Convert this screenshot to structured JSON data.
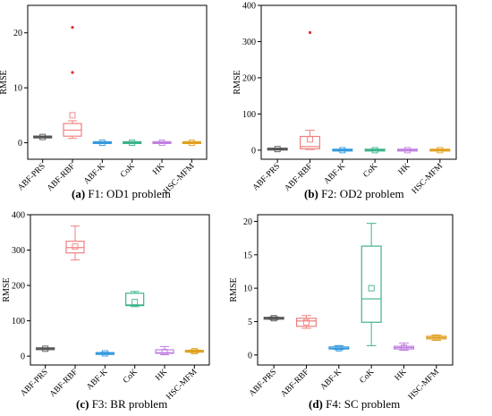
{
  "figure": {
    "panels": [
      {
        "caption_label": "(a)",
        "caption_text": " F1: OD1 problem"
      },
      {
        "caption_label": "(b)",
        "caption_text": " F2: OD2 problem"
      },
      {
        "caption_label": "(c)",
        "caption_text": " F3: BR problem"
      },
      {
        "caption_label": "(d)",
        "caption_text": " F4: SC problem"
      }
    ]
  },
  "chart_data": [
    {
      "type": "box",
      "title": "",
      "xlabel": "",
      "ylabel": "RMSE",
      "ylim": [
        -3,
        25
      ],
      "yticks": [
        0,
        10,
        20
      ],
      "categories": [
        "ABF-PRS",
        "ABF-RBF",
        "ABF-K",
        "CoK",
        "HK",
        "HSC-MFM"
      ],
      "colors": [
        "#555555",
        "#f08080",
        "#3399dd",
        "#3cb38a",
        "#c080e0",
        "#e0a020"
      ],
      "boxes": [
        {
          "min": 1.0,
          "q1": 1.0,
          "median": 1.05,
          "q3": 1.1,
          "max": 1.15,
          "mean": 1.05,
          "outliers": []
        },
        {
          "min": 0.8,
          "q1": 1.2,
          "median": 2.3,
          "q3": 3.5,
          "max": 4.0,
          "mean": 5.0,
          "outliers": [
            12.8,
            21.0
          ]
        },
        {
          "min": 0.0,
          "q1": 0.0,
          "median": 0.0,
          "q3": 0.05,
          "max": 0.05,
          "mean": 0.0,
          "outliers": []
        },
        {
          "min": 0.0,
          "q1": 0.0,
          "median": 0.0,
          "q3": 0.05,
          "max": 0.05,
          "mean": 0.0,
          "outliers": []
        },
        {
          "min": 0.0,
          "q1": 0.0,
          "median": 0.0,
          "q3": 0.05,
          "max": 0.05,
          "mean": 0.0,
          "outliers": []
        },
        {
          "min": 0.0,
          "q1": 0.0,
          "median": 0.0,
          "q3": 0.05,
          "max": 0.05,
          "mean": 0.0,
          "outliers": []
        }
      ]
    },
    {
      "type": "box",
      "title": "",
      "xlabel": "",
      "ylabel": "RMSE",
      "ylim": [
        -25,
        400
      ],
      "yticks": [
        0,
        100,
        200,
        300,
        400
      ],
      "categories": [
        "ABF-PRS",
        "ABF-RBF",
        "ABF-K",
        "CoK",
        "HK",
        "HSC-MFM"
      ],
      "colors": [
        "#555555",
        "#f08080",
        "#3399dd",
        "#3cb38a",
        "#c080e0",
        "#e0a020"
      ],
      "boxes": [
        {
          "min": 2.0,
          "q1": 2.5,
          "median": 3.0,
          "q3": 3.5,
          "max": 4.0,
          "mean": 3.0,
          "outliers": []
        },
        {
          "min": 2.0,
          "q1": 4.0,
          "median": 10.0,
          "q3": 38.0,
          "max": 55.0,
          "mean": 30.0,
          "outliers": [
            325.0
          ]
        },
        {
          "min": 0.0,
          "q1": 0.0,
          "median": 0.0,
          "q3": 0.5,
          "max": 0.5,
          "mean": 0.0,
          "outliers": []
        },
        {
          "min": 0.0,
          "q1": 0.0,
          "median": 0.0,
          "q3": 0.5,
          "max": 0.5,
          "mean": 0.0,
          "outliers": []
        },
        {
          "min": 0.0,
          "q1": 0.0,
          "median": 0.0,
          "q3": 0.5,
          "max": 0.5,
          "mean": 0.0,
          "outliers": []
        },
        {
          "min": 0.0,
          "q1": 0.0,
          "median": 0.0,
          "q3": 0.5,
          "max": 0.5,
          "mean": 0.0,
          "outliers": []
        }
      ]
    },
    {
      "type": "box",
      "title": "",
      "xlabel": "",
      "ylabel": "RMSE",
      "ylim": [
        -25,
        400
      ],
      "yticks": [
        0,
        100,
        200,
        300,
        400
      ],
      "categories": [
        "ABF-PRS",
        "ABF-RBF",
        "ABF-K",
        "CoK",
        "HK",
        "HSC-MFM"
      ],
      "colors": [
        "#555555",
        "#f08080",
        "#3399dd",
        "#3cb38a",
        "#c080e0",
        "#e0a020"
      ],
      "boxes": [
        {
          "min": 19.0,
          "q1": 20.0,
          "median": 21.0,
          "q3": 22.0,
          "max": 23.0,
          "mean": 21.0,
          "outliers": []
        },
        {
          "min": 272.0,
          "q1": 292.0,
          "median": 307.0,
          "q3": 325.0,
          "max": 368.0,
          "mean": 310.0,
          "outliers": []
        },
        {
          "min": 5.0,
          "q1": 6.0,
          "median": 8.0,
          "q3": 9.0,
          "max": 11.0,
          "mean": 8.0,
          "outliers": []
        },
        {
          "min": 140.0,
          "q1": 143.0,
          "median": 145.0,
          "q3": 178.0,
          "max": 183.0,
          "mean": 153.0,
          "outliers": []
        },
        {
          "min": 4.0,
          "q1": 8.0,
          "median": 10.0,
          "q3": 18.0,
          "max": 27.0,
          "mean": 12.0,
          "outliers": []
        },
        {
          "min": 10.0,
          "q1": 12.0,
          "median": 14.0,
          "q3": 16.0,
          "max": 18.0,
          "mean": 14.0,
          "outliers": []
        }
      ]
    },
    {
      "type": "box",
      "title": "",
      "xlabel": "",
      "ylabel": "RMSE",
      "ylim": [
        -1.5,
        21
      ],
      "yticks": [
        0,
        5,
        10,
        15,
        20
      ],
      "categories": [
        "ABF-PRS",
        "ABF-RBF",
        "ABF-K",
        "CoK",
        "HK",
        "HSC-MFM"
      ],
      "colors": [
        "#555555",
        "#f08080",
        "#3399dd",
        "#3cb38a",
        "#c080e0",
        "#e0a020"
      ],
      "boxes": [
        {
          "min": 5.3,
          "q1": 5.4,
          "median": 5.5,
          "q3": 5.6,
          "max": 5.7,
          "mean": 5.5,
          "outliers": []
        },
        {
          "min": 4.0,
          "q1": 4.3,
          "median": 5.1,
          "q3": 5.5,
          "max": 5.9,
          "mean": 4.9,
          "outliers": []
        },
        {
          "min": 0.8,
          "q1": 0.9,
          "median": 1.0,
          "q3": 1.2,
          "max": 1.4,
          "mean": 1.0,
          "outliers": []
        },
        {
          "min": 1.4,
          "q1": 4.9,
          "median": 8.4,
          "q3": 16.3,
          "max": 19.7,
          "mean": 10.0,
          "outliers": []
        },
        {
          "min": 0.7,
          "q1": 0.9,
          "median": 1.1,
          "q3": 1.3,
          "max": 1.8,
          "mean": 1.1,
          "outliers": []
        },
        {
          "min": 2.2,
          "q1": 2.4,
          "median": 2.6,
          "q3": 2.8,
          "max": 3.0,
          "mean": 2.6,
          "outliers": []
        }
      ]
    }
  ]
}
